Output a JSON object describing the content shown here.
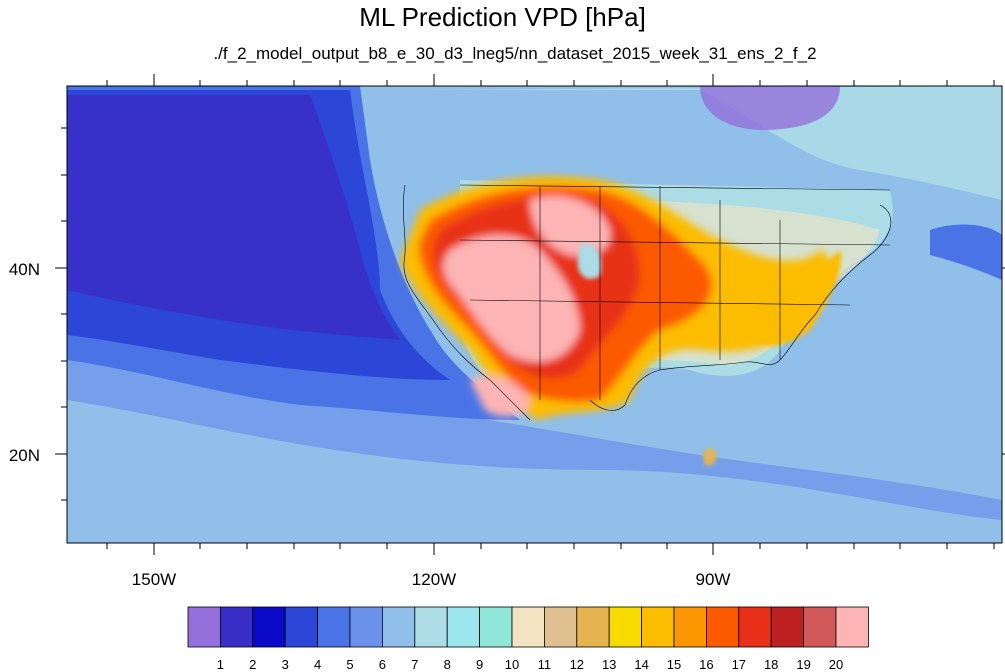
{
  "title": "ML Prediction VPD [hPa]",
  "subtitle": "./f_2_model_output_b8_e_30_d3_lneg5/nn_dataset_2015_week_31_ens_2_f_2",
  "map": {
    "lon_range": [
      -165,
      -65
    ],
    "lat_range": [
      10,
      59
    ],
    "lon_ticks": [
      "150W",
      "120W",
      "90W"
    ],
    "lat_ticks": [
      "40N",
      "20N"
    ]
  },
  "colorbar": {
    "labels": [
      "1",
      "2",
      "3",
      "4",
      "5",
      "6",
      "7",
      "8",
      "9",
      "10",
      "11",
      "12",
      "13",
      "14",
      "15",
      "16",
      "17",
      "18",
      "19",
      "20"
    ],
    "colors": [
      "#9370db",
      "#3a2ec8",
      "#0a0ac8",
      "#2c46d8",
      "#4a74e6",
      "#6a92ea",
      "#90bfea",
      "#acdce6",
      "#9ee6ee",
      "#90e6d8",
      "#f2e4c0",
      "#e0c090",
      "#e6b450",
      "#f8dc00",
      "#fcbc00",
      "#fc9600",
      "#fc5a00",
      "#e83018",
      "#bc2020",
      "#d05858",
      "#fcb4b4"
    ]
  }
}
